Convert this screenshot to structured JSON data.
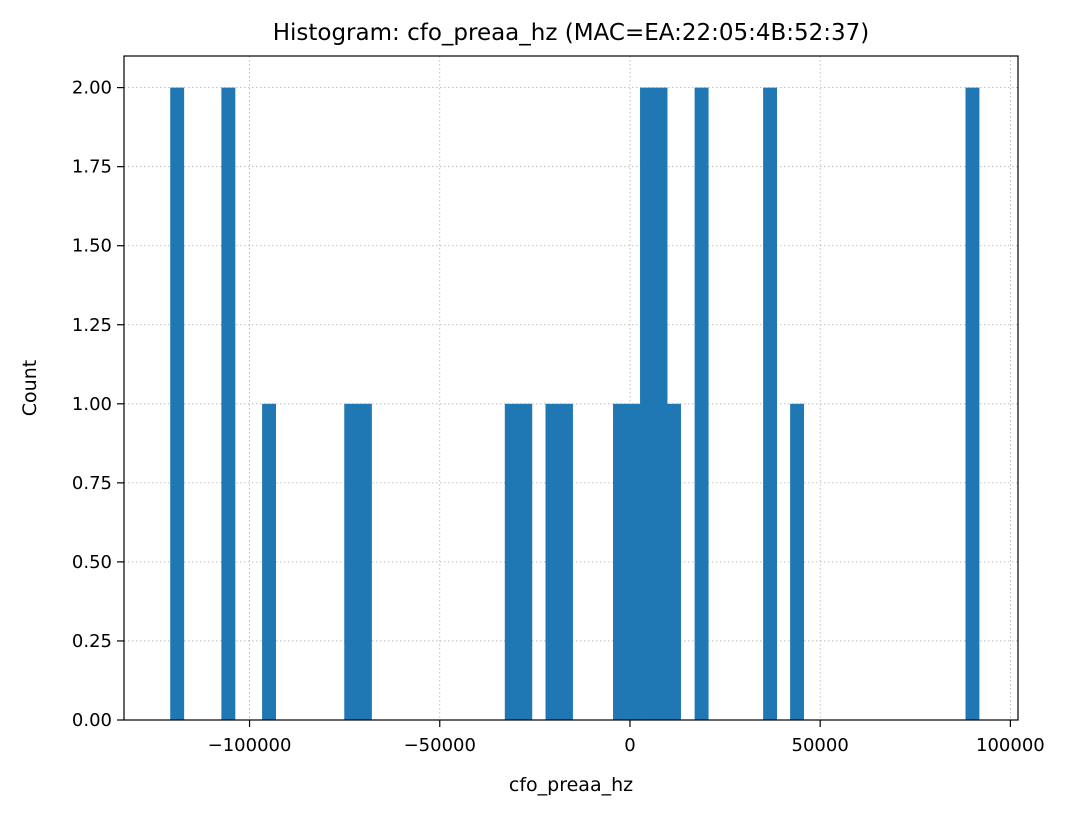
{
  "chart_data": {
    "type": "bar",
    "title": "Histogram: cfo_preaa_hz (MAC=EA:22:05:4B:52:37)",
    "xlabel": "cfo_preaa_hz",
    "ylabel": "Count",
    "xlim": [
      -133000,
      102000
    ],
    "ylim": [
      0,
      2.1
    ],
    "bin_width": 3550,
    "grid": true,
    "bar_color": "#1f77b4",
    "xticks": [
      -100000,
      -50000,
      0,
      50000,
      100000
    ],
    "xtick_labels": [
      "−100000",
      "−50000",
      "0",
      "50000",
      "100000"
    ],
    "yticks": [
      0,
      0.25,
      0.5,
      0.75,
      1.0,
      1.25,
      1.5,
      1.75,
      2.0
    ],
    "ytick_labels": [
      "0.00",
      "0.25",
      "0.50",
      "0.75",
      "1.00",
      "1.25",
      "1.50",
      "1.75",
      "2.00"
    ],
    "bins": [
      {
        "x0": -120850,
        "count": 2
      },
      {
        "x0": -107400,
        "count": 2
      },
      {
        "x0": -96700,
        "count": 1
      },
      {
        "x0": -75100,
        "count": 1
      },
      {
        "x0": -71500,
        "count": 1
      },
      {
        "x0": -32900,
        "count": 1
      },
      {
        "x0": -29350,
        "count": 1
      },
      {
        "x0": -22200,
        "count": 1
      },
      {
        "x0": -18650,
        "count": 1
      },
      {
        "x0": -4450,
        "count": 1
      },
      {
        "x0": -900,
        "count": 1
      },
      {
        "x0": 2650,
        "count": 2
      },
      {
        "x0": 6200,
        "count": 2
      },
      {
        "x0": 9750,
        "count": 1
      },
      {
        "x0": 17000,
        "count": 2
      },
      {
        "x0": 35000,
        "count": 2
      },
      {
        "x0": 42100,
        "count": 1
      },
      {
        "x0": 88200,
        "count": 2
      }
    ]
  }
}
